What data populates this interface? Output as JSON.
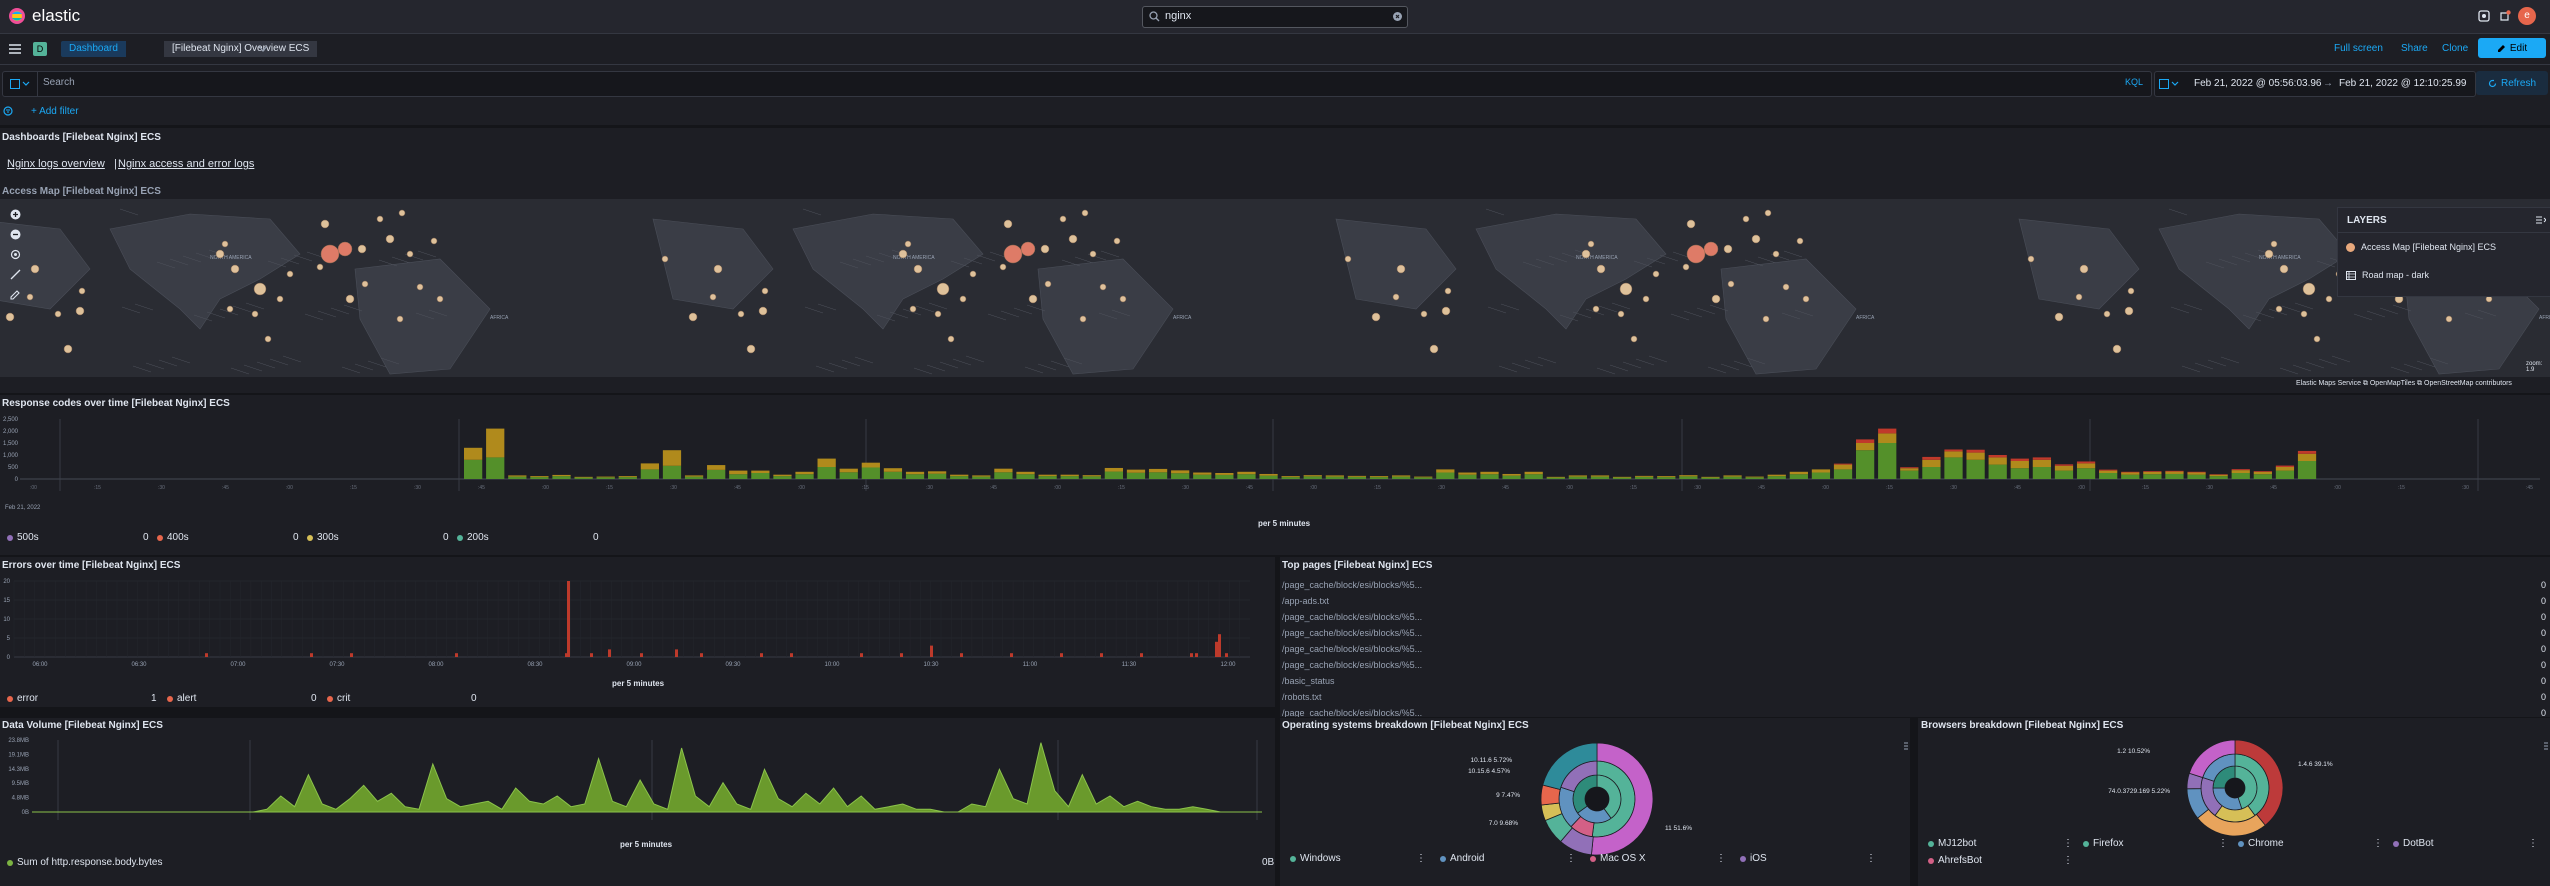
{
  "topbar": {
    "logo_text": "elastic",
    "search_value": "nginx",
    "avatar_initial": "e"
  },
  "navbar": {
    "space_initial": "D",
    "breadcrumb_1": "Dashboard",
    "breadcrumb_2": "[Filebeat Nginx] Overview ECS",
    "full_screen": "Full screen",
    "share": "Share",
    "clone": "Clone",
    "edit": "Edit"
  },
  "query": {
    "placeholder": "Search",
    "kql": "KQL",
    "date_start": "Feb 21, 2022 @ 05:56:03.96",
    "arrow": "→",
    "date_end": "Feb 21, 2022 @ 12:10:25.99",
    "refresh": "Refresh",
    "add_filter": "+ Add filter"
  },
  "dash_panel": {
    "title": "Dashboards [Filebeat Nginx] ECS",
    "link_1": "Nginx logs overview",
    "sep": "|",
    "link_2": "Nginx access and error logs"
  },
  "map": {
    "title": "Access Map [Filebeat Nginx] ECS",
    "label_na": "NORTH AMERICA",
    "label_africa": "AFRICA",
    "layers_title": "LAYERS",
    "layer_1": "Access Map [Filebeat Nginx] ECS",
    "layer_2": "Road map - dark",
    "attribution": "Elastic Maps Service ⧉ OpenMapTiles ⧉ OpenStreetMap contributors",
    "zoom": "zoom: 1.9"
  },
  "response_codes": {
    "title": "Response codes over time [Filebeat Nginx] ECS",
    "x_title": "per 5 minutes",
    "date_label": "Feb 21, 2022",
    "legend": [
      {
        "name": "500s",
        "value": "0",
        "color": "#9170b8"
      },
      {
        "name": "400s",
        "value": "0",
        "color": "#e7664c"
      },
      {
        "name": "300s",
        "value": "0",
        "color": "#d6bf57"
      },
      {
        "name": "200s",
        "value": "0",
        "color": "#54b399"
      }
    ]
  },
  "errors": {
    "title": "Errors over time [Filebeat Nginx] ECS",
    "x_title": "per 5 minutes",
    "legend": [
      {
        "name": "error",
        "value": "1",
        "color": "#e7664c"
      },
      {
        "name": "alert",
        "value": "0",
        "color": "#e7664c"
      },
      {
        "name": "crit",
        "value": "0",
        "color": "#e7664c"
      }
    ]
  },
  "top_pages": {
    "title": "Top pages [Filebeat Nginx] ECS",
    "rows": [
      {
        "page": "/page_cache/block/esi/blocks/%5...",
        "count": "0"
      },
      {
        "page": "/app-ads.txt",
        "count": "0"
      },
      {
        "page": "/page_cache/block/esi/blocks/%5...",
        "count": "0"
      },
      {
        "page": "/page_cache/block/esi/blocks/%5...",
        "count": "0"
      },
      {
        "page": "/page_cache/block/esi/blocks/%5...",
        "count": "0"
      },
      {
        "page": "/page_cache/block/esi/blocks/%5...",
        "count": "0"
      },
      {
        "page": "/basic_status",
        "count": "0"
      },
      {
        "page": "/robots.txt",
        "count": "0"
      },
      {
        "page": "/page_cache/block/esi/blocks/%5...",
        "count": "0"
      }
    ]
  },
  "data_volume": {
    "title": "Data Volume [Filebeat Nginx] ECS",
    "x_title": "per 5 minutes",
    "legend_name": "Sum of http.response.body.bytes",
    "legend_value": "0B",
    "color": "#7cb342"
  },
  "os": {
    "title": "Operating systems breakdown [Filebeat Nginx] ECS",
    "labels": [
      "10.11.6 5.72%",
      "10.15.6 4.57%",
      "9 7.47%",
      "7.0 9.68%",
      "11 51.6%"
    ],
    "legend": [
      {
        "name": "Windows",
        "color": "#54b399"
      },
      {
        "name": "Android",
        "color": "#6092c0"
      },
      {
        "name": "Mac OS X",
        "color": "#d36086"
      },
      {
        "name": "iOS",
        "color": "#9170b8"
      }
    ]
  },
  "browsers": {
    "title": "Browsers breakdown [Filebeat Nginx] ECS",
    "labels": [
      "1.2 10.52%",
      "1.4.6 39.1%",
      "74.0.3729.169 5.22%"
    ],
    "legend": [
      {
        "name": "MJ12bot",
        "color": "#54b399"
      },
      {
        "name": "Firefox",
        "color": "#54b399"
      },
      {
        "name": "Chrome",
        "color": "#6092c0"
      },
      {
        "name": "DotBot",
        "color": "#9170b8"
      },
      {
        "name": "AhrefsBot",
        "color": "#d36086"
      }
    ]
  },
  "chart_data": [
    {
      "type": "bar",
      "title": "Response codes over time [Filebeat Nginx] ECS",
      "xlabel": "per 5 minutes",
      "y_ticks": [
        "2,500",
        "2,000",
        "1,500",
        "1,000",
        "500",
        "0"
      ],
      "ylim": [
        0,
        2500
      ],
      "series": [
        {
          "name": "200s",
          "values": [
            0,
            0,
            0,
            0,
            0,
            0,
            0,
            0,
            0,
            0,
            0,
            0,
            0,
            0,
            0,
            0,
            0,
            0,
            0,
            0,
            0,
            0,
            0,
            0,
            0,
            0,
            0,
            0,
            0,
            0,
            0,
            0,
            0,
            0,
            0,
            0,
            0,
            0,
            0,
            0,
            0,
            0,
            0,
            0,
            0,
            0,
            0,
            0,
            0,
            0,
            0,
            0,
            0,
            0,
            0,
            0,
            0,
            0,
            0,
            0,
            0,
            0,
            0,
            0,
            0,
            0,
            0,
            0,
            0,
            0,
            0,
            0,
            0,
            0,
            0,
            0,
            0,
            0,
            0,
            0,
            0,
            0,
            0,
            0,
            0,
            0,
            0,
            0,
            0,
            0,
            0,
            0,
            0,
            0,
            0,
            0,
            0,
            0,
            0,
            0,
            0,
            0,
            0,
            0,
            0,
            0,
            0,
            0,
            0,
            0,
            0,
            0,
            0,
            0,
            0,
            0,
            0,
            0,
            0,
            0
          ]
        },
        {
          "name": "300s",
          "values": [
            0
          ]
        },
        {
          "name": "400s",
          "values": [
            0
          ]
        },
        {
          "name": "500s",
          "values": [
            0
          ]
        }
      ],
      "bars_200": [
        800,
        900,
        100,
        80,
        120,
        60,
        70,
        80,
        400,
        550,
        100,
        380,
        200,
        250,
        120,
        200,
        500,
        280,
        480,
        300,
        200,
        220,
        120,
        100,
        280,
        200,
        120,
        120,
        110,
        310,
        260,
        280,
        240,
        180,
        170,
        200,
        140,
        80,
        110,
        100,
        90,
        80,
        100,
        70,
        270,
        180,
        200,
        140,
        200,
        60,
        100,
        100,
        60,
        90,
        80,
        110,
        60,
        100,
        70,
        120,
        200,
        270,
        400,
        1200,
        1500,
        350,
        500,
        900,
        800,
        600,
        450,
        500,
        350,
        450,
        250,
        180,
        200,
        210,
        180,
        120,
        250,
        200,
        350,
        750
      ],
      "bars_300": [
        500,
        1200,
        50,
        40,
        50,
        30,
        30,
        40,
        250,
        650,
        50,
        200,
        150,
        100,
        60,
        100,
        350,
        150,
        200,
        150,
        100,
        100,
        60,
        50,
        150,
        100,
        60,
        60,
        50,
        150,
        130,
        140,
        120,
        90,
        80,
        100,
        70,
        40,
        50,
        50,
        40,
        40,
        50,
        30,
        130,
        90,
        100,
        70,
        100,
        30,
        50,
        50,
        30,
        40,
        40,
        50,
        30,
        50,
        30,
        60,
        100,
        130,
        200,
        300,
        400,
        100,
        300,
        250,
        300,
        300,
        300,
        300,
        200,
        200,
        100,
        90,
        100,
        100,
        90,
        60,
        120,
        100,
        150,
        300
      ],
      "bars_400": [
        0,
        0,
        0,
        0,
        0,
        0,
        0,
        0,
        0,
        0,
        0,
        0,
        0,
        0,
        0,
        0,
        0,
        0,
        0,
        0,
        0,
        0,
        0,
        0,
        0,
        0,
        0,
        0,
        0,
        0,
        0,
        0,
        0,
        0,
        0,
        0,
        0,
        0,
        0,
        0,
        0,
        0,
        0,
        0,
        0,
        0,
        0,
        0,
        0,
        0,
        0,
        0,
        0,
        0,
        0,
        0,
        0,
        0,
        0,
        0,
        0,
        0,
        40,
        150,
        200,
        40,
        120,
        80,
        120,
        100,
        100,
        100,
        60,
        80,
        40,
        30,
        30,
        30,
        30,
        20,
        40,
        30,
        60,
        120
      ]
    },
    {
      "type": "bar",
      "title": "Errors over time [Filebeat Nginx] ECS",
      "xlabel": "per 5 minutes",
      "y_ticks": [
        "20",
        "15",
        "10",
        "5",
        "0"
      ],
      "x_ticks": [
        "06:00",
        "06:30",
        "07:00",
        "07:30",
        "08:00",
        "08:30",
        "09:00",
        "09:30",
        "10:00",
        "10:30",
        "11:00",
        "11:30",
        "12:00"
      ],
      "ylim": [
        0,
        20
      ],
      "series": [
        {
          "name": "error",
          "values": [
            1,
            1,
            1,
            1,
            1,
            20,
            1,
            2,
            1,
            2,
            1,
            1,
            1,
            1,
            1,
            3,
            1,
            1,
            1,
            1,
            1,
            1,
            1,
            4,
            6,
            1
          ]
        }
      ]
    },
    {
      "type": "area",
      "title": "Data Volume [Filebeat Nginx] ECS",
      "xlabel": "per 5 minutes",
      "y_ticks": [
        "23.8MB",
        "19.1MB",
        "14.3MB",
        "9.5MB",
        "4.8MB",
        "0B"
      ],
      "ylim": [
        0,
        23.8
      ],
      "series": [
        {
          "name": "Sum of http.response.body.bytes",
          "values": [
            0,
            0,
            0,
            0,
            0,
            0,
            0,
            0,
            0,
            0,
            0,
            0,
            0,
            0,
            0,
            0,
            0,
            0,
            0,
            0,
            0,
            0,
            0,
            0,
            0,
            0,
            0,
            0,
            0,
            0,
            0,
            0,
            0,
            0,
            0,
            0,
            0,
            0,
            0,
            0,
            0,
            0,
            0,
            0,
            0,
            0,
            0,
            0,
            0,
            0,
            0,
            0,
            0,
            0,
            0,
            0
          ]
        }
      ],
      "area_values": [
        0,
        0,
        0,
        0,
        0,
        0,
        0,
        0,
        0,
        0,
        0,
        0,
        0,
        0,
        0,
        0,
        0,
        1,
        6,
        2,
        14,
        3,
        1,
        5,
        10,
        4,
        7,
        2,
        1,
        18,
        5,
        2,
        3,
        4,
        1,
        9,
        4,
        3,
        6,
        2,
        3,
        20,
        4,
        2,
        12,
        3,
        1,
        24,
        6,
        2,
        11,
        3,
        1,
        16,
        5,
        2,
        7,
        3,
        9,
        2,
        6,
        1,
        2,
        3,
        1,
        1,
        0,
        0,
        3,
        2,
        16,
        5,
        3,
        26,
        8,
        2,
        14,
        3,
        6,
        2,
        4,
        2,
        1,
        1,
        2,
        1,
        0,
        0,
        0,
        0
      ]
    },
    {
      "type": "pie",
      "title": "Operating systems breakdown [Filebeat Nginx] ECS",
      "labels": [
        "10.11.6",
        "10.15.6",
        "9",
        "7.0",
        "11"
      ],
      "values": [
        5.72,
        4.57,
        7.47,
        9.68,
        51.6
      ]
    },
    {
      "type": "pie",
      "title": "Browsers breakdown [Filebeat Nginx] ECS",
      "labels": [
        "1.2",
        "1.4.6",
        "74.0.3729.169"
      ],
      "values": [
        10.52,
        39.1,
        5.22
      ]
    }
  ]
}
